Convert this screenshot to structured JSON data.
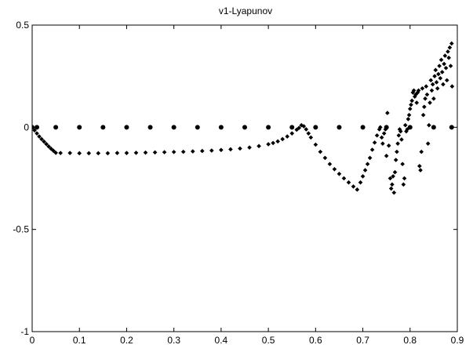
{
  "chart_data": {
    "type": "scatter",
    "title": "v1-Lyapunov",
    "xlabel": "",
    "ylabel": "",
    "xlim": [
      0,
      0.9
    ],
    "ylim": [
      -1,
      0.5
    ],
    "xticks": [
      "0",
      "0.1",
      "0.2",
      "0.3",
      "0.4",
      "0.5",
      "0.6",
      "0.7",
      "0.8",
      "0.9"
    ],
    "yticks": [
      "0.5",
      "0",
      "-0.5",
      "-1"
    ],
    "ytick_values": [
      0.5,
      0,
      -0.5,
      -1
    ],
    "grid": false,
    "marker_color": "#000000",
    "series": [
      {
        "values": [
          [
            0.0,
            0.0
          ],
          [
            0.01,
            0.0
          ],
          [
            0.05,
            0.0
          ],
          [
            0.1,
            0.0
          ],
          [
            0.15,
            0.0
          ],
          [
            0.2,
            0.0
          ],
          [
            0.25,
            0.0
          ],
          [
            0.3,
            0.0
          ],
          [
            0.35,
            0.0
          ],
          [
            0.4,
            0.0
          ],
          [
            0.45,
            0.0
          ],
          [
            0.5,
            0.0
          ],
          [
            0.55,
            0.0
          ],
          [
            0.6,
            0.0
          ],
          [
            0.65,
            0.0
          ],
          [
            0.7,
            0.0
          ],
          [
            0.75,
            0.0
          ],
          [
            0.8,
            0.0
          ],
          [
            0.85,
            0.0
          ],
          [
            0.888,
            0.0
          ]
        ]
      },
      {
        "values": [
          [
            0.0,
            0.0
          ],
          [
            0.005,
            -0.015
          ],
          [
            0.01,
            -0.03
          ],
          [
            0.015,
            -0.045
          ],
          [
            0.02,
            -0.058
          ],
          [
            0.025,
            -0.07
          ],
          [
            0.03,
            -0.082
          ],
          [
            0.035,
            -0.094
          ],
          [
            0.04,
            -0.105
          ],
          [
            0.045,
            -0.115
          ],
          [
            0.05,
            -0.125
          ],
          [
            0.06,
            -0.126
          ],
          [
            0.08,
            -0.126
          ],
          [
            0.1,
            -0.127
          ],
          [
            0.12,
            -0.127
          ],
          [
            0.14,
            -0.127
          ],
          [
            0.16,
            -0.127
          ],
          [
            0.18,
            -0.126
          ],
          [
            0.2,
            -0.126
          ],
          [
            0.22,
            -0.125
          ],
          [
            0.24,
            -0.124
          ],
          [
            0.26,
            -0.123
          ],
          [
            0.28,
            -0.122
          ],
          [
            0.3,
            -0.121
          ],
          [
            0.32,
            -0.12
          ],
          [
            0.34,
            -0.118
          ],
          [
            0.36,
            -0.116
          ],
          [
            0.38,
            -0.114
          ],
          [
            0.4,
            -0.111
          ],
          [
            0.42,
            -0.108
          ],
          [
            0.44,
            -0.104
          ],
          [
            0.46,
            -0.099
          ],
          [
            0.48,
            -0.092
          ],
          [
            0.5,
            -0.083
          ],
          [
            0.51,
            -0.077
          ],
          [
            0.52,
            -0.069
          ],
          [
            0.53,
            -0.058
          ],
          [
            0.54,
            -0.045
          ],
          [
            0.55,
            -0.03
          ],
          [
            0.56,
            -0.012
          ],
          [
            0.565,
            -0.003
          ],
          [
            0.57,
            0.01
          ],
          [
            0.575,
            0.005
          ],
          [
            0.58,
            -0.01
          ],
          [
            0.585,
            -0.03
          ],
          [
            0.59,
            -0.05
          ],
          [
            0.6,
            -0.085
          ],
          [
            0.61,
            -0.12
          ],
          [
            0.62,
            -0.15
          ],
          [
            0.63,
            -0.18
          ],
          [
            0.64,
            -0.205
          ],
          [
            0.65,
            -0.228
          ],
          [
            0.66,
            -0.25
          ],
          [
            0.67,
            -0.27
          ],
          [
            0.68,
            -0.29
          ],
          [
            0.688,
            -0.305
          ],
          [
            0.695,
            -0.27
          ],
          [
            0.7,
            -0.24
          ],
          [
            0.705,
            -0.21
          ],
          [
            0.71,
            -0.18
          ],
          [
            0.715,
            -0.15
          ],
          [
            0.72,
            -0.11
          ],
          [
            0.725,
            -0.075
          ],
          [
            0.73,
            -0.04
          ],
          [
            0.735,
            -0.01
          ],
          [
            0.737,
            0.0
          ],
          [
            0.74,
            -0.05
          ],
          [
            0.742,
            -0.08
          ],
          [
            0.745,
            -0.03
          ],
          [
            0.748,
            -0.01
          ],
          [
            0.75,
            -0.14
          ],
          [
            0.752,
            0.07
          ],
          [
            0.755,
            -0.09
          ],
          [
            0.758,
            -0.25
          ],
          [
            0.76,
            -0.3
          ],
          [
            0.762,
            -0.28
          ],
          [
            0.764,
            -0.24
          ],
          [
            0.766,
            -0.32
          ],
          [
            0.768,
            -0.22
          ],
          [
            0.77,
            -0.16
          ],
          [
            0.772,
            -0.12
          ],
          [
            0.774,
            -0.08
          ],
          [
            0.776,
            -0.04
          ],
          [
            0.778,
            -0.01
          ],
          [
            0.78,
            -0.02
          ],
          [
            0.782,
            -0.06
          ],
          [
            0.784,
            -0.18
          ],
          [
            0.786,
            -0.28
          ],
          [
            0.788,
            -0.25
          ],
          [
            0.79,
            0.01
          ],
          [
            0.792,
            -0.02
          ],
          [
            0.794,
            -0.01
          ],
          [
            0.796,
            0.04
          ],
          [
            0.798,
            0.06
          ],
          [
            0.8,
            0.09
          ],
          [
            0.802,
            0.11
          ],
          [
            0.804,
            0.13
          ],
          [
            0.806,
            0.17
          ],
          [
            0.808,
            0.18
          ],
          [
            0.81,
            0.15
          ],
          [
            0.812,
            0.16
          ],
          [
            0.814,
            0.12
          ],
          [
            0.816,
            0.17
          ],
          [
            0.818,
            0.18
          ],
          [
            0.82,
            -0.19
          ],
          [
            0.822,
            -0.21
          ],
          [
            0.824,
            -0.12
          ],
          [
            0.826,
            0.19
          ],
          [
            0.828,
            0.06
          ],
          [
            0.83,
            0.1
          ],
          [
            0.832,
            0.14
          ],
          [
            0.834,
            0.2
          ],
          [
            0.836,
            0.16
          ],
          [
            0.838,
            -0.08
          ],
          [
            0.84,
            0.01
          ],
          [
            0.842,
            0.12
          ],
          [
            0.844,
            0.23
          ],
          [
            0.846,
            0.18
          ],
          [
            0.848,
            0.21
          ],
          [
            0.85,
            0.14
          ],
          [
            0.852,
            0.25
          ],
          [
            0.854,
            0.28
          ],
          [
            0.856,
            0.22
          ],
          [
            0.858,
            0.19
          ],
          [
            0.86,
            0.26
          ],
          [
            0.862,
            0.3
          ],
          [
            0.864,
            0.24
          ],
          [
            0.866,
            0.33
          ],
          [
            0.868,
            0.27
          ],
          [
            0.87,
            0.21
          ],
          [
            0.872,
            0.31
          ],
          [
            0.874,
            0.35
          ],
          [
            0.876,
            0.29
          ],
          [
            0.878,
            0.23
          ],
          [
            0.88,
            0.37
          ],
          [
            0.882,
            0.34
          ],
          [
            0.884,
            0.39
          ],
          [
            0.886,
            0.3
          ],
          [
            0.888,
            0.41
          ],
          [
            0.889,
            0.2
          ]
        ]
      }
    ]
  }
}
